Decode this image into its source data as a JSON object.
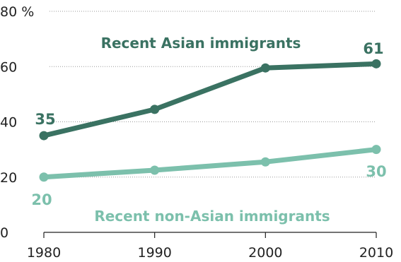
{
  "chart_data": {
    "type": "line",
    "x": [
      1980,
      1990,
      2000,
      2010
    ],
    "y_ticks": [
      "0",
      "20",
      "40",
      "60",
      "80 %"
    ],
    "ylim": [
      0,
      80
    ],
    "grid": true,
    "series": [
      {
        "name": "Recent Asian immigrants",
        "values": [
          35,
          44.5,
          59.5,
          61
        ],
        "color": "#3a7262",
        "labels": [
          {
            "index": 0,
            "text": "35"
          },
          {
            "index": 3,
            "text": "61"
          }
        ]
      },
      {
        "name": "Recent non-Asian immigrants",
        "values": [
          20,
          22.5,
          25.5,
          30
        ],
        "color": "#7cc0ac",
        "labels": [
          {
            "index": 0,
            "text": "20"
          },
          {
            "index": 3,
            "text": "30"
          }
        ]
      }
    ]
  }
}
